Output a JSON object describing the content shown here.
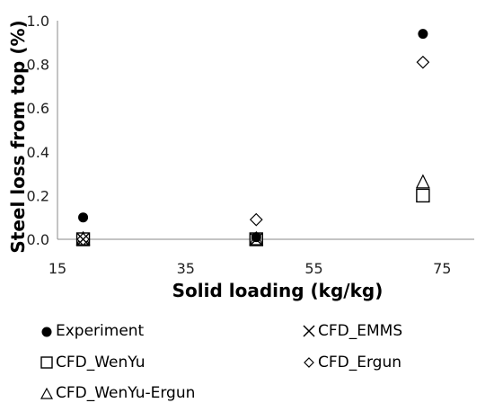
{
  "chart_data": {
    "type": "scatter",
    "title": "",
    "xlabel": "Solid loading (kg/kg)",
    "ylabel": "Steel loss from top (%)",
    "xlim": [
      15,
      80
    ],
    "ylim": [
      0,
      1.0
    ],
    "xticks": [
      "15",
      "35",
      "55",
      "75"
    ],
    "yticks": [
      "0.0",
      "0.2",
      "0.4",
      "0.6",
      "0.8",
      "1.0"
    ],
    "grid": false,
    "legend_position": "bottom",
    "series": [
      {
        "name": "Experiment",
        "marker": "filled-circle",
        "x": [
          19,
          46,
          72
        ],
        "y": [
          0.1,
          0.01,
          0.94
        ]
      },
      {
        "name": "CFD_EMMS",
        "marker": "x",
        "x": [
          19,
          46
        ],
        "y": [
          0.0,
          0.0
        ]
      },
      {
        "name": "CFD_WenYu",
        "marker": "square",
        "x": [
          19,
          46,
          72
        ],
        "y": [
          0.0,
          0.0,
          0.2
        ]
      },
      {
        "name": "CFD_Ergun",
        "marker": "diamond",
        "x": [
          19,
          46,
          72
        ],
        "y": [
          0.0,
          0.09,
          0.81
        ]
      },
      {
        "name": "CFD_WenYu-Ergun",
        "marker": "triangle",
        "x": [
          19,
          46,
          72
        ],
        "y": [
          0.0,
          0.0,
          0.26
        ]
      }
    ]
  }
}
